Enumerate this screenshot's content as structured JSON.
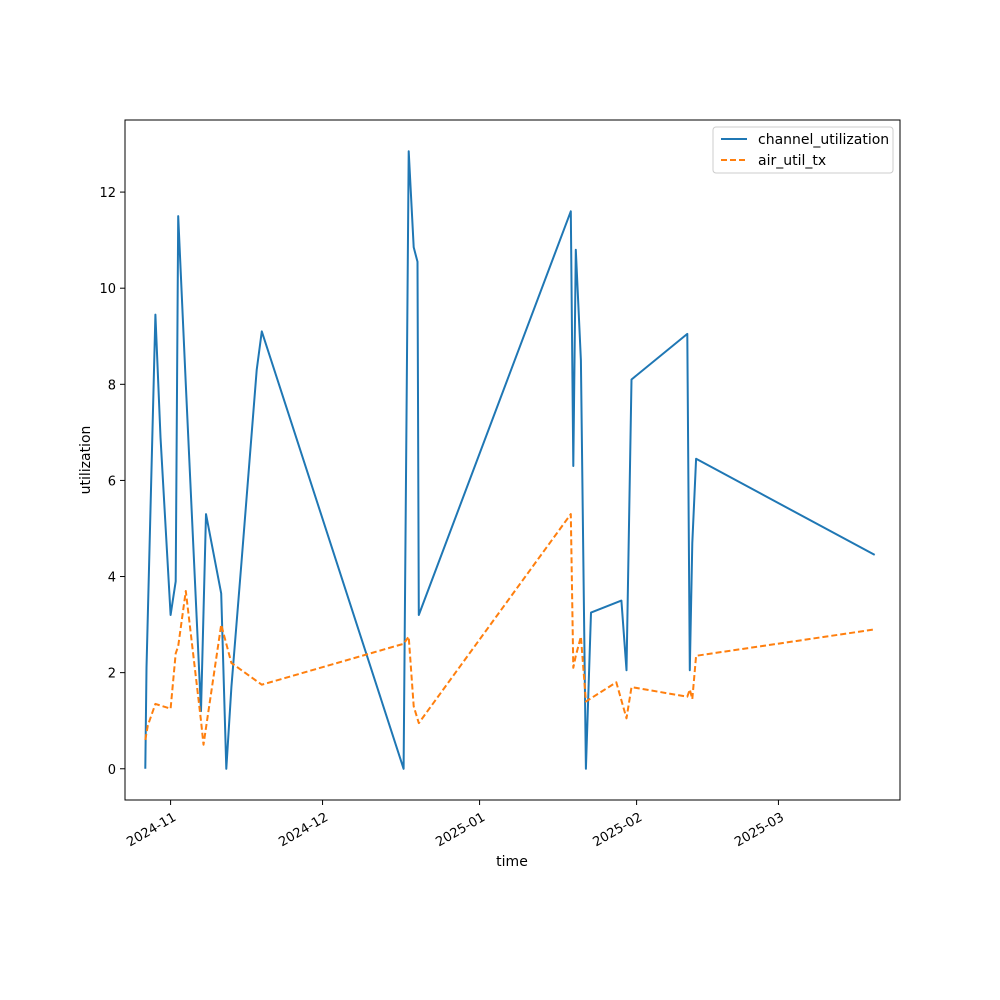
{
  "chart_data": {
    "type": "line",
    "xlabel": "time",
    "ylabel": "utilization",
    "x_ticks": [
      "2024-11",
      "2024-12",
      "2025-01",
      "2025-02",
      "2025-03"
    ],
    "y_ticks": [
      0,
      2,
      4,
      6,
      8,
      10,
      12
    ],
    "xlim": [
      "2024-10-23",
      "2025-03-25"
    ],
    "ylim": [
      -0.65,
      13.5
    ],
    "grid": false,
    "legend_position": "top-right",
    "series": [
      {
        "name": "channel_utilization",
        "color": "#1f77b4",
        "style": "solid",
        "points": [
          {
            "x": "2024-10-27",
            "y": 0.0
          },
          {
            "x": "2024-10-27T06:00",
            "y": 2.1
          },
          {
            "x": "2024-10-29",
            "y": 9.45
          },
          {
            "x": "2024-10-30",
            "y": 6.9
          },
          {
            "x": "2024-11-01",
            "y": 3.2
          },
          {
            "x": "2024-11-02",
            "y": 3.9
          },
          {
            "x": "2024-11-02T12:00",
            "y": 11.5
          },
          {
            "x": "2024-11-04",
            "y": 8.0
          },
          {
            "x": "2024-11-07",
            "y": 1.2
          },
          {
            "x": "2024-11-08",
            "y": 5.3
          },
          {
            "x": "2024-11-11",
            "y": 3.65
          },
          {
            "x": "2024-11-12",
            "y": 0.0
          },
          {
            "x": "2024-11-13",
            "y": 1.7
          },
          {
            "x": "2024-11-15",
            "y": 4.3
          },
          {
            "x": "2024-11-18",
            "y": 8.3
          },
          {
            "x": "2024-11-19",
            "y": 9.1
          },
          {
            "x": "2024-12-17",
            "y": 0.0
          },
          {
            "x": "2024-12-18",
            "y": 12.85
          },
          {
            "x": "2024-12-19",
            "y": 10.85
          },
          {
            "x": "2024-12-19T18:00",
            "y": 10.55
          },
          {
            "x": "2024-12-20",
            "y": 3.2
          },
          {
            "x": "2025-01-19",
            "y": 11.6
          },
          {
            "x": "2025-01-19T12:00",
            "y": 6.3
          },
          {
            "x": "2025-01-20",
            "y": 10.8
          },
          {
            "x": "2025-01-21",
            "y": 8.5
          },
          {
            "x": "2025-01-22",
            "y": 0.0
          },
          {
            "x": "2025-01-23",
            "y": 3.25
          },
          {
            "x": "2025-01-29",
            "y": 3.5
          },
          {
            "x": "2025-01-30",
            "y": 2.05
          },
          {
            "x": "2025-01-31",
            "y": 8.1
          },
          {
            "x": "2025-02-11",
            "y": 9.05
          },
          {
            "x": "2025-02-11T12:00",
            "y": 2.05
          },
          {
            "x": "2025-02-12",
            "y": 4.7
          },
          {
            "x": "2025-02-12T18:00",
            "y": 6.45
          },
          {
            "x": "2025-03-20",
            "y": 4.45
          }
        ]
      },
      {
        "name": "air_util_tx",
        "color": "#ff7f0e",
        "style": "dashed",
        "points": [
          {
            "x": "2024-10-27",
            "y": 0.6
          },
          {
            "x": "2024-10-27T12:00",
            "y": 0.9
          },
          {
            "x": "2024-10-29",
            "y": 1.35
          },
          {
            "x": "2024-11-01",
            "y": 1.25
          },
          {
            "x": "2024-11-02",
            "y": 2.4
          },
          {
            "x": "2024-11-02T12:00",
            "y": 2.55
          },
          {
            "x": "2024-11-04",
            "y": 3.7
          },
          {
            "x": "2024-11-07",
            "y": 1.0
          },
          {
            "x": "2024-11-07T12:00",
            "y": 0.5
          },
          {
            "x": "2024-11-11",
            "y": 3.0
          },
          {
            "x": "2024-11-13",
            "y": 2.2
          },
          {
            "x": "2024-11-19",
            "y": 1.75
          },
          {
            "x": "2024-12-17",
            "y": 2.6
          },
          {
            "x": "2024-12-18",
            "y": 2.75
          },
          {
            "x": "2024-12-19",
            "y": 1.3
          },
          {
            "x": "2024-12-20",
            "y": 0.95
          },
          {
            "x": "2025-01-19",
            "y": 5.3
          },
          {
            "x": "2025-01-19T12:00",
            "y": 2.1
          },
          {
            "x": "2025-01-20",
            "y": 2.35
          },
          {
            "x": "2025-01-21",
            "y": 2.75
          },
          {
            "x": "2025-01-22",
            "y": 1.4
          },
          {
            "x": "2025-01-28",
            "y": 1.8
          },
          {
            "x": "2025-01-30",
            "y": 1.05
          },
          {
            "x": "2025-01-31",
            "y": 1.7
          },
          {
            "x": "2025-02-11",
            "y": 1.5
          },
          {
            "x": "2025-02-11T12:00",
            "y": 1.65
          },
          {
            "x": "2025-02-12",
            "y": 1.45
          },
          {
            "x": "2025-02-12T18:00",
            "y": 2.35
          },
          {
            "x": "2025-03-20",
            "y": 2.9
          }
        ]
      }
    ]
  }
}
